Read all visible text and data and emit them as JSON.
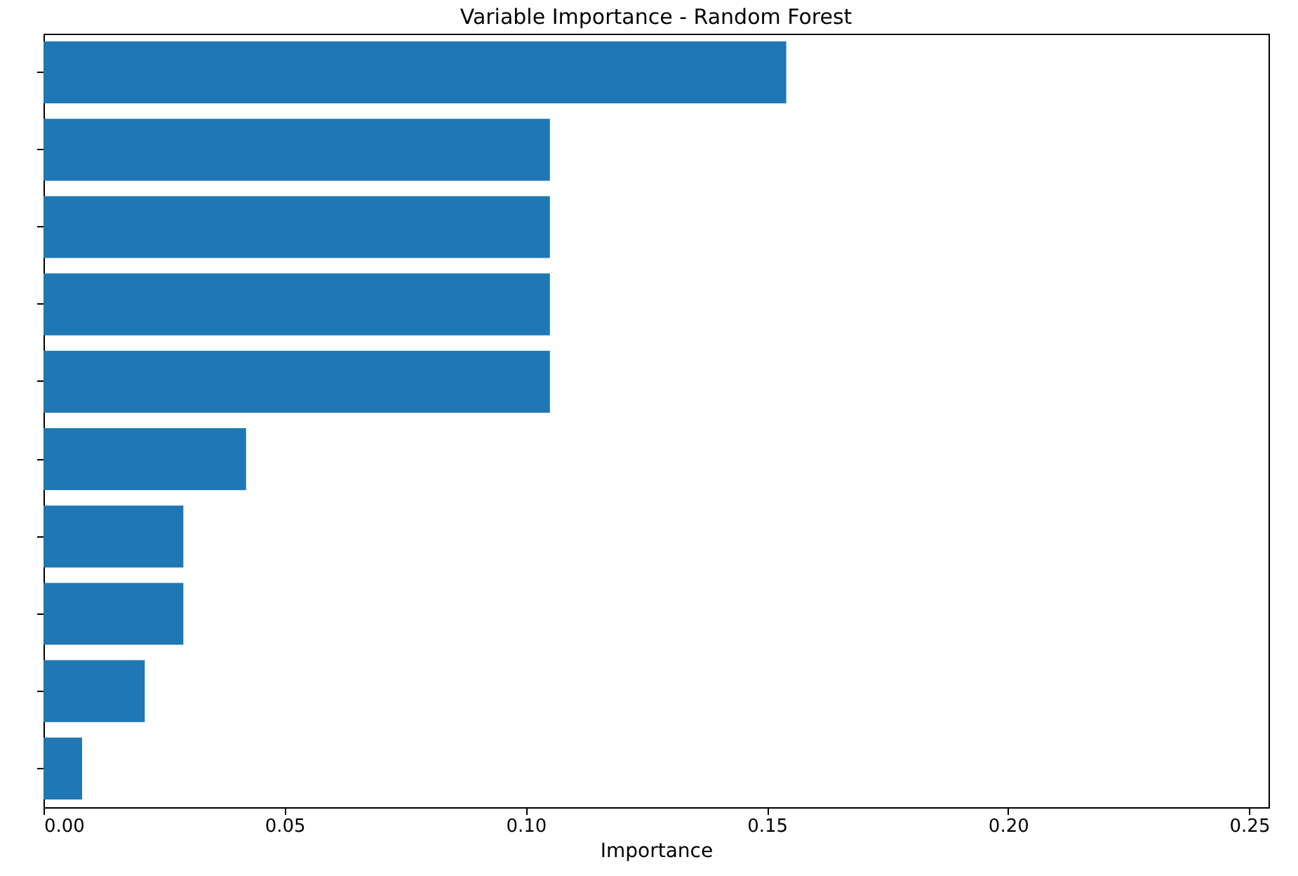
{
  "chart_data": {
    "type": "bar",
    "orientation": "horizontal",
    "title": "Variable Importance - Random Forest",
    "xlabel": "Importance",
    "categories": [
      null,
      null,
      null,
      null,
      null,
      null,
      null,
      null,
      null,
      null
    ],
    "values": [
      0.154,
      0.105,
      0.105,
      0.105,
      0.105,
      0.042,
      0.029,
      0.029,
      0.021,
      0.008
    ],
    "color": "#1f77b4",
    "xlim": [
      0,
      0.254
    ],
    "xticks": [
      {
        "value": 0,
        "label": "0.00"
      },
      0.05,
      {
        "value": 0.1,
        "label": "0.10"
      },
      0.15,
      {
        "value": 0.2,
        "label": "0.20"
      },
      0.25
    ],
    "tick_labels": "x",
    "grid": false
  }
}
